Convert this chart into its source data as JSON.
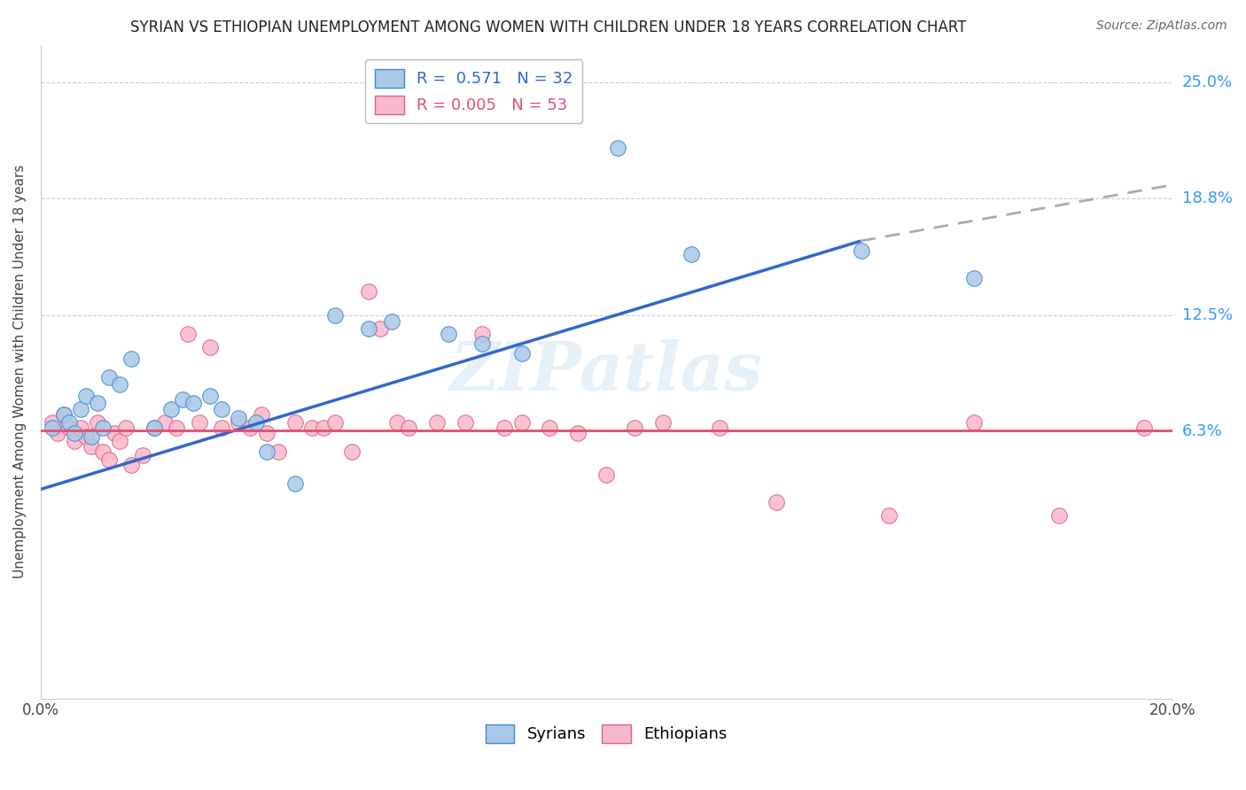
{
  "title": "SYRIAN VS ETHIOPIAN UNEMPLOYMENT AMONG WOMEN WITH CHILDREN UNDER 18 YEARS CORRELATION CHART",
  "source": "Source: ZipAtlas.com",
  "ylabel": "Unemployment Among Women with Children Under 18 years",
  "xlim": [
    0.0,
    20.0
  ],
  "ylim": [
    -8.0,
    27.0
  ],
  "ytick_positions": [
    6.3,
    12.5,
    18.8,
    25.0
  ],
  "ytick_labels": [
    "6.3%",
    "12.5%",
    "18.8%",
    "25.0%"
  ],
  "watermark": "ZIPatlas",
  "syrian_color": "#a8c8e8",
  "syrian_edge_color": "#4488cc",
  "ethiopian_color": "#f8b8cc",
  "ethiopian_edge_color": "#e06080",
  "regression_syrian_solid_color": "#3366cc",
  "regression_syrian_dashed_color": "#aaaaaa",
  "regression_ethiopian_color": "#e05070",
  "background_color": "#ffffff",
  "syrian_points": [
    [
      0.2,
      6.5
    ],
    [
      0.4,
      7.2
    ],
    [
      0.5,
      6.8
    ],
    [
      0.6,
      6.2
    ],
    [
      0.7,
      7.5
    ],
    [
      0.8,
      8.2
    ],
    [
      0.9,
      6.0
    ],
    [
      1.0,
      7.8
    ],
    [
      1.1,
      6.5
    ],
    [
      1.2,
      9.2
    ],
    [
      1.4,
      8.8
    ],
    [
      1.6,
      10.2
    ],
    [
      2.0,
      6.5
    ],
    [
      2.3,
      7.5
    ],
    [
      2.5,
      8.0
    ],
    [
      2.7,
      7.8
    ],
    [
      3.0,
      8.2
    ],
    [
      3.2,
      7.5
    ],
    [
      3.5,
      7.0
    ],
    [
      3.8,
      6.8
    ],
    [
      4.0,
      5.2
    ],
    [
      4.5,
      3.5
    ],
    [
      5.2,
      12.5
    ],
    [
      5.8,
      11.8
    ],
    [
      6.2,
      12.2
    ],
    [
      7.2,
      11.5
    ],
    [
      7.8,
      11.0
    ],
    [
      8.5,
      10.5
    ],
    [
      10.2,
      21.5
    ],
    [
      11.5,
      15.8
    ],
    [
      14.5,
      16.0
    ],
    [
      16.5,
      14.5
    ]
  ],
  "ethiopian_points": [
    [
      0.2,
      6.8
    ],
    [
      0.3,
      6.2
    ],
    [
      0.4,
      7.2
    ],
    [
      0.5,
      6.5
    ],
    [
      0.6,
      5.8
    ],
    [
      0.7,
      6.5
    ],
    [
      0.8,
      6.0
    ],
    [
      0.9,
      5.5
    ],
    [
      1.0,
      6.8
    ],
    [
      1.1,
      5.2
    ],
    [
      1.2,
      4.8
    ],
    [
      1.3,
      6.2
    ],
    [
      1.4,
      5.8
    ],
    [
      1.5,
      6.5
    ],
    [
      1.6,
      4.5
    ],
    [
      1.8,
      5.0
    ],
    [
      2.0,
      6.5
    ],
    [
      2.2,
      6.8
    ],
    [
      2.4,
      6.5
    ],
    [
      2.6,
      11.5
    ],
    [
      2.8,
      6.8
    ],
    [
      3.0,
      10.8
    ],
    [
      3.2,
      6.5
    ],
    [
      3.5,
      6.8
    ],
    [
      3.7,
      6.5
    ],
    [
      3.9,
      7.2
    ],
    [
      4.0,
      6.2
    ],
    [
      4.2,
      5.2
    ],
    [
      4.5,
      6.8
    ],
    [
      4.8,
      6.5
    ],
    [
      5.0,
      6.5
    ],
    [
      5.2,
      6.8
    ],
    [
      5.5,
      5.2
    ],
    [
      5.8,
      13.8
    ],
    [
      6.0,
      11.8
    ],
    [
      6.3,
      6.8
    ],
    [
      6.5,
      6.5
    ],
    [
      7.0,
      6.8
    ],
    [
      7.5,
      6.8
    ],
    [
      7.8,
      11.5
    ],
    [
      8.2,
      6.5
    ],
    [
      8.5,
      6.8
    ],
    [
      9.0,
      6.5
    ],
    [
      9.5,
      6.2
    ],
    [
      10.0,
      4.0
    ],
    [
      10.5,
      6.5
    ],
    [
      11.0,
      6.8
    ],
    [
      12.0,
      6.5
    ],
    [
      13.0,
      2.5
    ],
    [
      15.0,
      1.8
    ],
    [
      16.5,
      6.8
    ],
    [
      18.0,
      1.8
    ],
    [
      19.5,
      6.5
    ]
  ],
  "syrian_solid_x0": 0.0,
  "syrian_solid_y0": 3.2,
  "syrian_solid_x1": 14.5,
  "syrian_solid_y1": 16.5,
  "syrian_dashed_x0": 14.5,
  "syrian_dashed_y0": 16.5,
  "syrian_dashed_x1": 20.0,
  "syrian_dashed_y1": 19.5,
  "ethiopian_x0": 0.0,
  "ethiopian_y0": 6.35,
  "ethiopian_x1": 20.0,
  "ethiopian_y1": 6.35
}
